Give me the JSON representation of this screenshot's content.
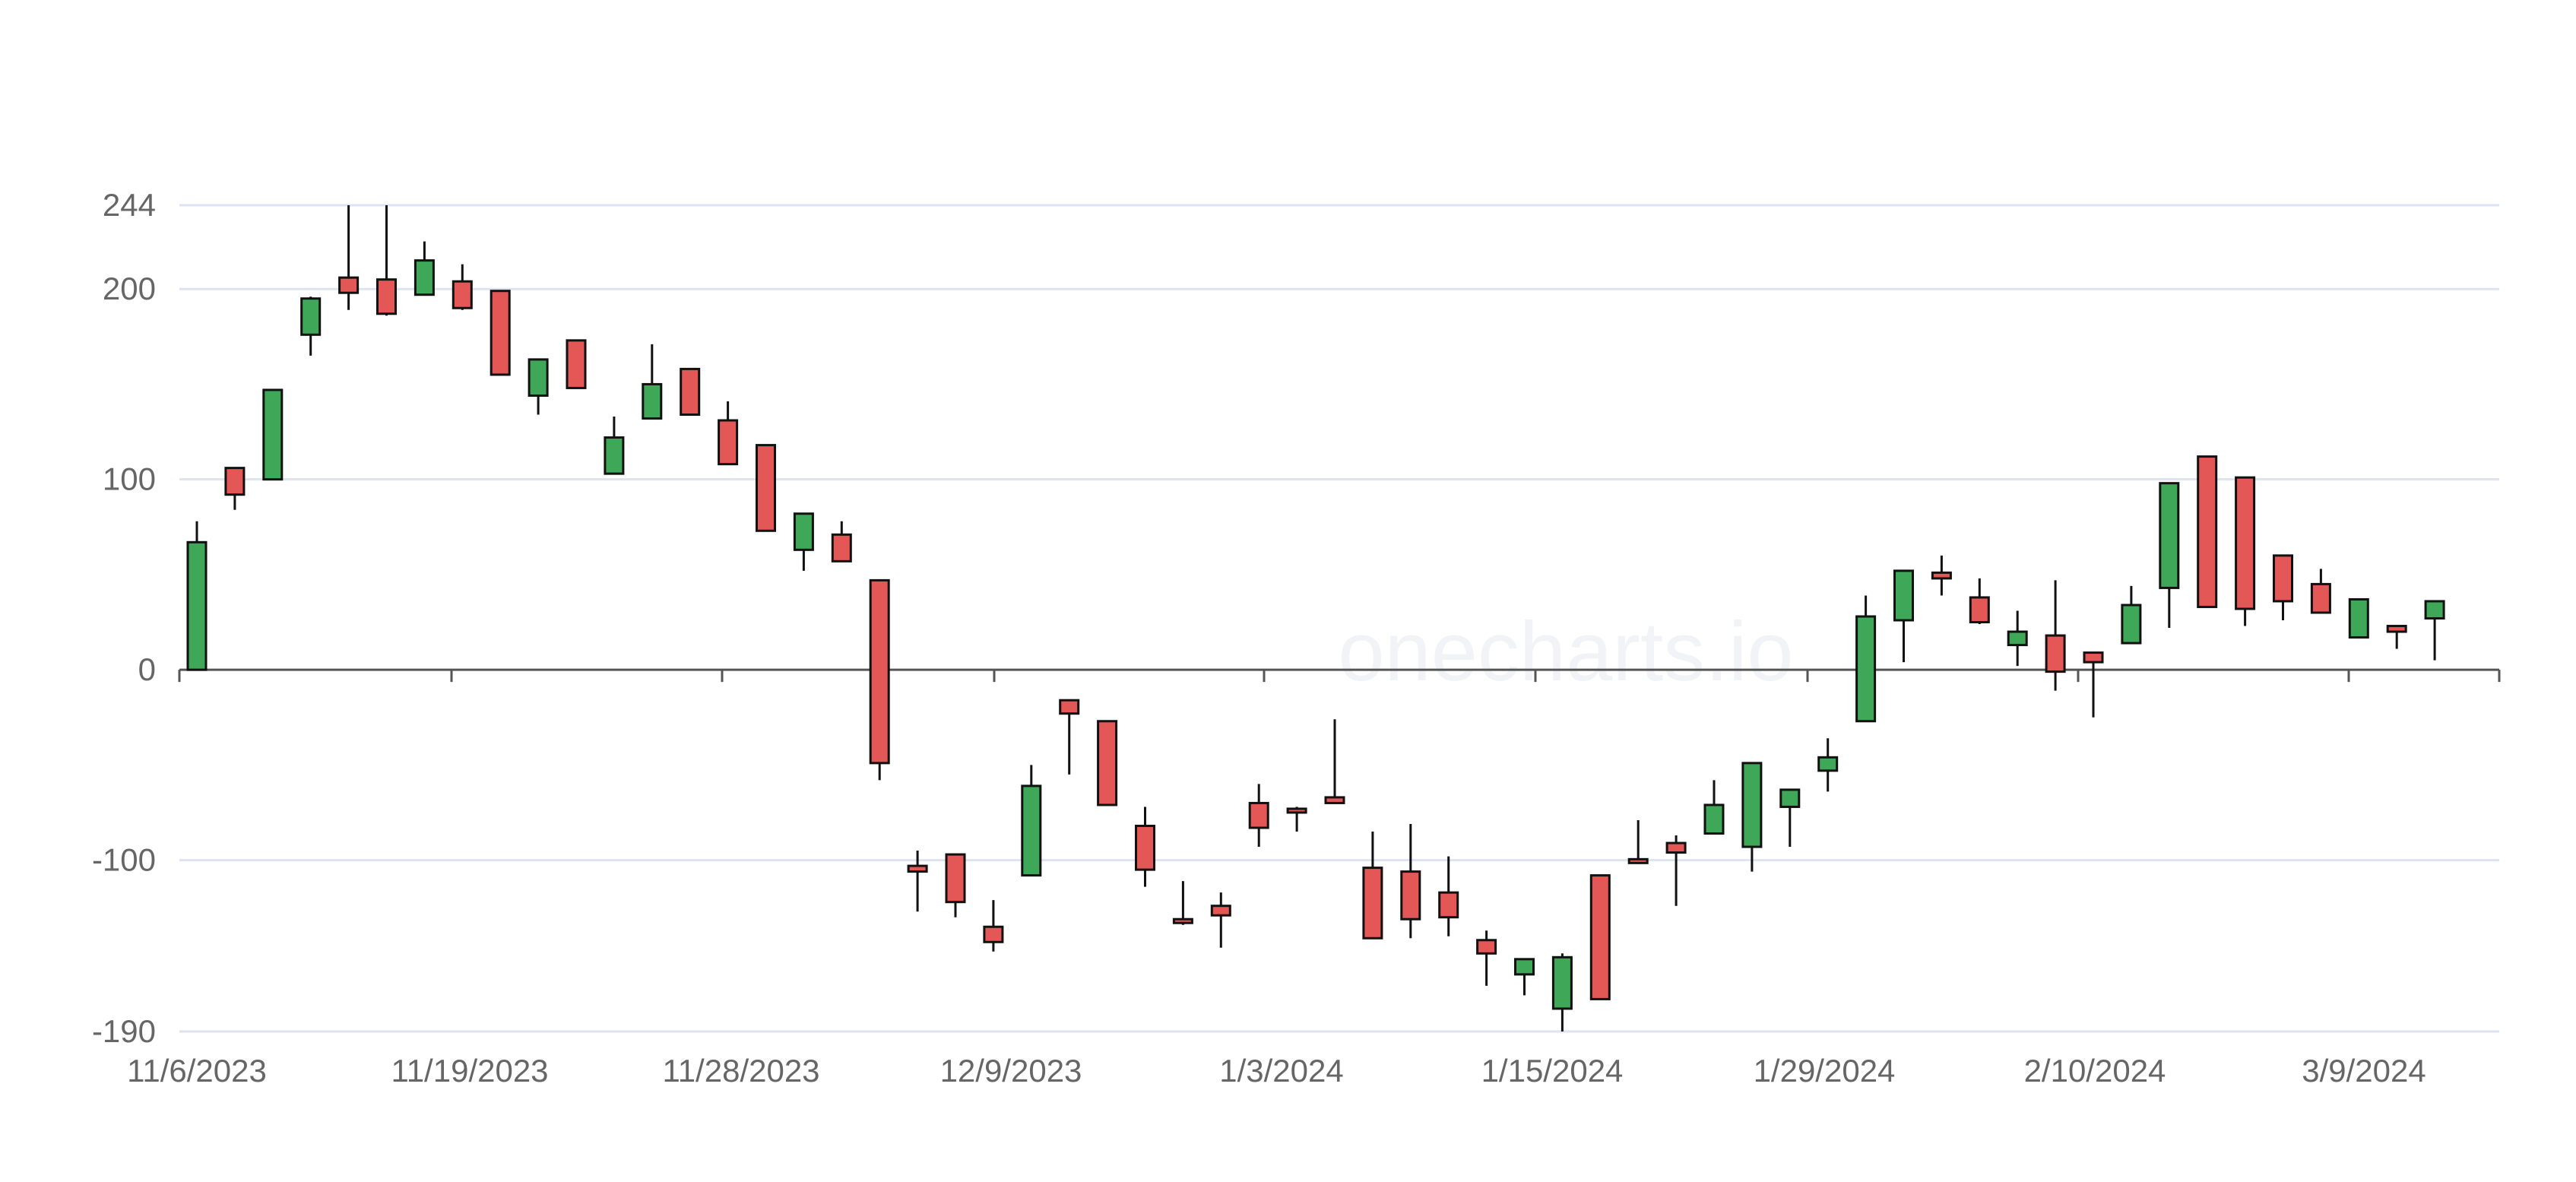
{
  "chart_data": {
    "type": "candlestick",
    "title": "",
    "xlabel": "",
    "ylabel": "",
    "ylim": [
      -190,
      244
    ],
    "y_ticks": [
      244,
      200,
      100,
      0,
      -100,
      -190
    ],
    "x_tick_labels": [
      "11/6/2023",
      "11/19/2023",
      "11/28/2023",
      "12/9/2023",
      "1/3/2024",
      "1/15/2024",
      "1/29/2024",
      "2/10/2024",
      "3/9/2024"
    ],
    "grid": true,
    "up_color": "#3ea858",
    "down_color": "#e45757",
    "candles": [
      {
        "open": 0,
        "high": 78,
        "low": 0,
        "close": 67
      },
      {
        "open": 106,
        "high": 106,
        "low": 84,
        "close": 92
      },
      {
        "open": 100,
        "high": 147,
        "low": 100,
        "close": 147
      },
      {
        "open": 176,
        "high": 196,
        "low": 165,
        "close": 195
      },
      {
        "open": 206,
        "high": 244,
        "low": 189,
        "close": 198
      },
      {
        "open": 205,
        "high": 244,
        "low": 186,
        "close": 187
      },
      {
        "open": 197,
        "high": 225,
        "low": 197,
        "close": 215
      },
      {
        "open": 204,
        "high": 213,
        "low": 189,
        "close": 190
      },
      {
        "open": 199,
        "high": 199,
        "low": 155,
        "close": 155
      },
      {
        "open": 144,
        "high": 163,
        "low": 134,
        "close": 163
      },
      {
        "open": 173,
        "high": 173,
        "low": 148,
        "close": 148
      },
      {
        "open": 103,
        "high": 133,
        "low": 103,
        "close": 122
      },
      {
        "open": 132,
        "high": 171,
        "low": 132,
        "close": 150
      },
      {
        "open": 158,
        "high": 158,
        "low": 134,
        "close": 134
      },
      {
        "open": 131,
        "high": 141,
        "low": 108,
        "close": 108
      },
      {
        "open": 118,
        "high": 118,
        "low": 73,
        "close": 73
      },
      {
        "open": 63,
        "high": 82,
        "low": 52,
        "close": 82
      },
      {
        "open": 71,
        "high": 78,
        "low": 57,
        "close": 57
      },
      {
        "open": 47,
        "high": 47,
        "low": -58,
        "close": -49
      },
      {
        "open": -103,
        "high": -95,
        "low": -127,
        "close": -106
      },
      {
        "open": -97,
        "high": -97,
        "low": -130,
        "close": -122
      },
      {
        "open": -135,
        "high": -121,
        "low": -148,
        "close": -143
      },
      {
        "open": -108,
        "high": -50,
        "low": -108,
        "close": -61
      },
      {
        "open": -16,
        "high": -16,
        "low": -55,
        "close": -23
      },
      {
        "open": -27,
        "high": -27,
        "low": -71,
        "close": -71
      },
      {
        "open": -82,
        "high": -72,
        "low": -114,
        "close": -105
      },
      {
        "open": -131,
        "high": -111,
        "low": -134,
        "close": -133
      },
      {
        "open": -124,
        "high": -117,
        "low": -146,
        "close": -129
      },
      {
        "open": -70,
        "high": -60,
        "low": -93,
        "close": -83
      },
      {
        "open": -73,
        "high": -72,
        "low": -85,
        "close": -75
      },
      {
        "open": -67,
        "high": -26,
        "low": -70,
        "close": -70
      },
      {
        "open": -104,
        "high": -85,
        "low": -141,
        "close": -141
      },
      {
        "open": -106,
        "high": -81,
        "low": -141,
        "close": -131
      },
      {
        "open": -117,
        "high": -98,
        "low": -140,
        "close": -130
      },
      {
        "open": -142,
        "high": -137,
        "low": -166,
        "close": -149
      },
      {
        "open": -160,
        "high": -152,
        "low": -171,
        "close": -152
      },
      {
        "open": -178,
        "high": -149,
        "low": -190,
        "close": -151
      },
      {
        "open": -108,
        "high": -108,
        "low": -173,
        "close": -173
      },
      {
        "open": -100,
        "high": -79,
        "low": -102,
        "close": -101
      },
      {
        "open": -91,
        "high": -87,
        "low": -124,
        "close": -96
      },
      {
        "open": -86,
        "high": -58,
        "low": -86,
        "close": -71
      },
      {
        "open": -93,
        "high": -49,
        "low": -106,
        "close": -49
      },
      {
        "open": -72,
        "high": -63,
        "low": -93,
        "close": -63
      },
      {
        "open": -53,
        "high": -36,
        "low": -64,
        "close": -46
      },
      {
        "open": -27,
        "high": 39,
        "low": -27,
        "close": 28
      },
      {
        "open": 26,
        "high": 52,
        "low": 4,
        "close": 52
      },
      {
        "open": 51,
        "high": 60,
        "low": 39,
        "close": 48
      },
      {
        "open": 38,
        "high": 48,
        "low": 24,
        "close": 25
      },
      {
        "open": 13,
        "high": 31,
        "low": 2,
        "close": 20
      },
      {
        "open": 18,
        "high": 47,
        "low": -11,
        "close": -1
      },
      {
        "open": 9,
        "high": 9,
        "low": -25,
        "close": 4
      },
      {
        "open": 14,
        "high": 44,
        "low": 14,
        "close": 34
      },
      {
        "open": 43,
        "high": 98,
        "low": 22,
        "close": 98
      },
      {
        "open": 112,
        "high": 112,
        "low": 33,
        "close": 33
      },
      {
        "open": 101,
        "high": 101,
        "low": 23,
        "close": 32
      },
      {
        "open": 60,
        "high": 60,
        "low": 26,
        "close": 36
      },
      {
        "open": 45,
        "high": 53,
        "low": 30,
        "close": 30
      },
      {
        "open": 17,
        "high": 37,
        "low": 17,
        "close": 37
      },
      {
        "open": 23,
        "high": 23,
        "low": 11,
        "close": 20
      },
      {
        "open": 27,
        "high": 36,
        "low": 5,
        "close": 36
      }
    ]
  },
  "watermark": "onecharts.io"
}
